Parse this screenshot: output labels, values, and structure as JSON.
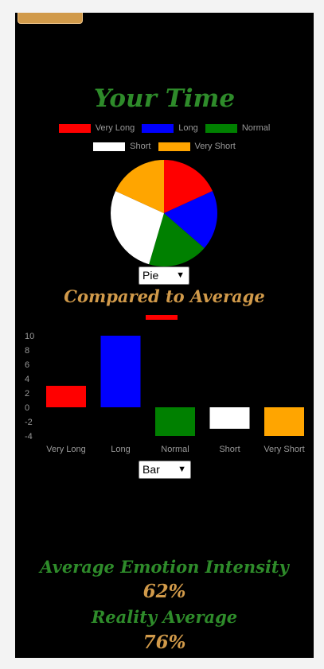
{
  "header": {
    "title": "Your Time"
  },
  "legend": {
    "items": [
      {
        "label": "Very Long",
        "color": "#ff0000"
      },
      {
        "label": "Long",
        "color": "#0000ff"
      },
      {
        "label": "Normal",
        "color": "#008000"
      },
      {
        "label": "Short",
        "color": "#ffffff"
      },
      {
        "label": "Very Short",
        "color": "#ffa500"
      }
    ]
  },
  "pie_select": {
    "value": "Pie"
  },
  "comparison": {
    "title": "Compared to Average"
  },
  "bar_select": {
    "value": "Bar"
  },
  "stats": {
    "emotion_label": "Average Emotion Intensity",
    "emotion_value": "62%",
    "reality_label": "Reality Average",
    "reality_value": "76%"
  },
  "chart_data": [
    {
      "type": "pie",
      "categories": [
        "Very Long",
        "Long",
        "Normal",
        "Short",
        "Very Short"
      ],
      "values": [
        1,
        1,
        1,
        1.5,
        1
      ],
      "colors": [
        "#ff0000",
        "#0000ff",
        "#008000",
        "#ffffff",
        "#ffa500"
      ]
    },
    {
      "type": "bar",
      "categories": [
        "Very Long",
        "Long",
        "Normal",
        "Short",
        "Very Short"
      ],
      "values": [
        3,
        10,
        -4,
        -3,
        -4
      ],
      "colors": [
        "#ff0000",
        "#0000ff",
        "#008000",
        "#ffffff",
        "#ffa500"
      ],
      "extra_mark": {
        "value": 12,
        "color": "#ff0000"
      },
      "yticks": [
        10,
        8,
        6,
        4,
        2,
        0,
        -2,
        -4
      ],
      "ylim": [
        -4,
        12
      ],
      "grid": false
    }
  ]
}
